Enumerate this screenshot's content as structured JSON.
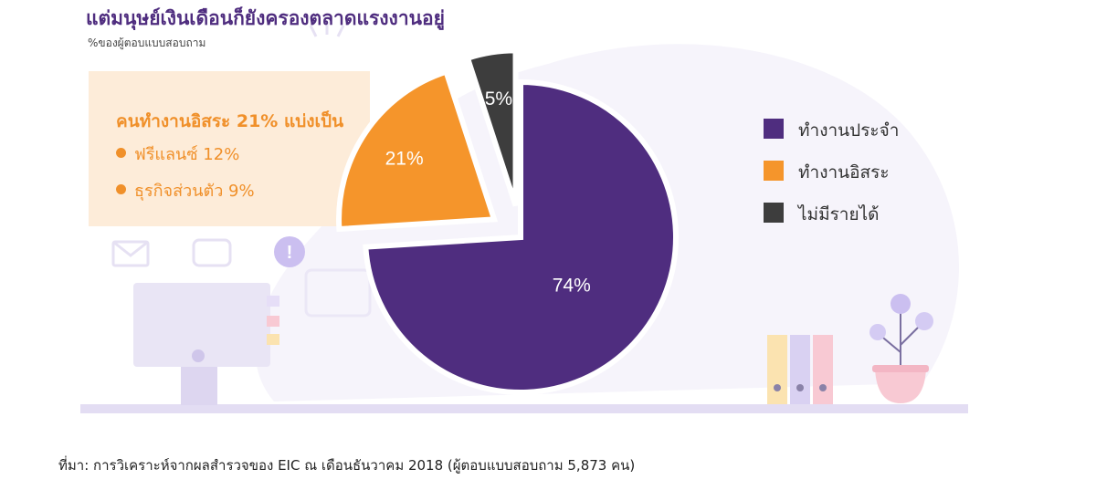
{
  "title": "แต่มนุษย์เงินเดือนก็ยังครองตลาดแรงงานอยู่",
  "subtitle": "%ของผู้ตอบแบบสอบถาม",
  "info_box": {
    "heading": "คนทำงานอิสระ 21% แบ่งเป็น",
    "items": [
      "ฟรีแลนซ์ 12%",
      "ธุรกิจส่วนตัว 9%"
    ]
  },
  "source": "ที่มา: การวิเคราะห์จากผลสำรวจของ EIC ณ เดือนธันวาคม 2018 (ผู้ตอบแบบสอบถาม 5,873 คน)",
  "colors": {
    "purple": "#4f2d7f",
    "orange": "#f5952b",
    "dark": "#3d3d3d",
    "decor": "#e6e1f3"
  },
  "chart_data": {
    "type": "pie",
    "title": "แต่มนุษย์เงินเดือนก็ยังครองตลาดแรงงานอยู่",
    "subtitle": "%ของผู้ตอบแบบสอบถาม",
    "legend_position": "right",
    "slices": [
      {
        "label": "ทำงานประจำ",
        "value": 74,
        "display": "74%",
        "color": "#4f2d7f",
        "exploded": false
      },
      {
        "label": "ทำงานอิสระ",
        "value": 21,
        "display": "21%",
        "color": "#f5952b",
        "exploded": true
      },
      {
        "label": "ไม่มีรายได้",
        "value": 5,
        "display": "5%",
        "color": "#3d3d3d",
        "exploded": true
      }
    ]
  }
}
